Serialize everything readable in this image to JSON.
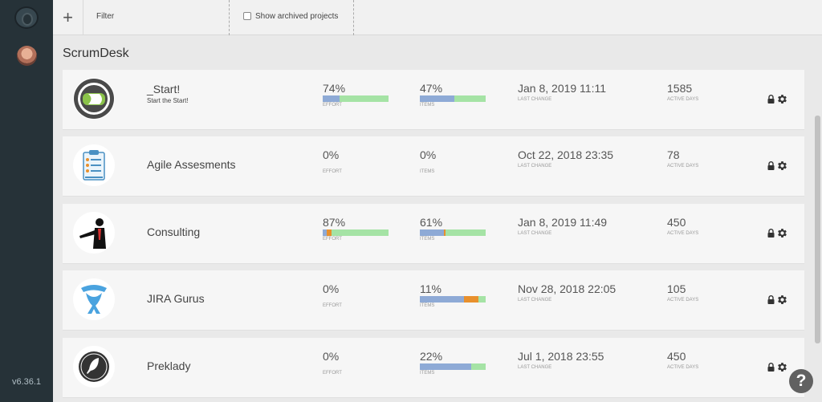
{
  "sidebar": {
    "version": "v6.36.1"
  },
  "toolbar": {
    "add_label": "+",
    "filter_placeholder": "Filter",
    "archived_label": "Show archived projects"
  },
  "section_title": "ScrumDesk",
  "projects": [
    {
      "name": "_Start!",
      "subtitle": "Start the Start!",
      "effort_pct": "74%",
      "effort_label": "EFFORT",
      "items_pct": "47%",
      "items_label": "ITEMS",
      "last_change": "Jan 8, 2019 11:11",
      "last_change_label": "LAST CHANGE",
      "active_days": "1585",
      "active_days_label": "ACTIVE DAYS",
      "effort_bar": {
        "blue": 0.26,
        "orange": 0.0,
        "green": 0.74
      },
      "items_bar": {
        "blue": 0.53,
        "orange": 0.0,
        "green": 0.47
      },
      "logo_icon": "scrumdesk-logo-icon"
    },
    {
      "name": "Agile Assesments",
      "subtitle": "",
      "effort_pct": "0%",
      "effort_label": "EFFORT",
      "items_pct": "0%",
      "items_label": "ITEMS",
      "last_change": "Oct 22, 2018 23:35",
      "last_change_label": "LAST CHANGE",
      "active_days": "78",
      "active_days_label": "ACTIVE DAYS",
      "effort_bar": null,
      "items_bar": null,
      "logo_icon": "clipboard-checklist-icon"
    },
    {
      "name": "Consulting",
      "subtitle": "",
      "effort_pct": "87%",
      "effort_label": "EFFORT",
      "items_pct": "61%",
      "items_label": "ITEMS",
      "last_change": "Jan 8, 2019 11:49",
      "last_change_label": "LAST CHANGE",
      "active_days": "450",
      "active_days_label": "ACTIVE DAYS",
      "effort_bar": {
        "blue": 0.06,
        "orange": 0.07,
        "green": 0.87
      },
      "items_bar": {
        "blue": 0.37,
        "orange": 0.02,
        "green": 0.61
      },
      "logo_icon": "presenter-figure-icon"
    },
    {
      "name": "JIRA Gurus",
      "subtitle": "",
      "effort_pct": "0%",
      "effort_label": "EFFORT",
      "items_pct": "11%",
      "items_label": "ITEMS",
      "last_change": "Nov 28, 2018 22:05",
      "last_change_label": "LAST CHANGE",
      "active_days": "105",
      "active_days_label": "ACTIVE DAYS",
      "effort_bar": null,
      "items_bar": {
        "blue": 0.67,
        "orange": 0.22,
        "green": 0.11
      },
      "logo_icon": "atlassian-logo-icon"
    },
    {
      "name": "Preklady",
      "subtitle": "",
      "effort_pct": "0%",
      "effort_label": "EFFORT",
      "items_pct": "22%",
      "items_label": "ITEMS",
      "last_change": "Jul 1, 2018 23:55",
      "last_change_label": "LAST CHANGE",
      "active_days": "450",
      "active_days_label": "ACTIVE DAYS",
      "effort_bar": null,
      "items_bar": {
        "blue": 0.78,
        "orange": 0.0,
        "green": 0.22
      },
      "logo_icon": "quill-feather-icon"
    }
  ],
  "colors": {
    "sidebar_bg": "#263238",
    "bar_blue": "#8eaad6",
    "bar_green": "#a5e3a5",
    "bar_orange": "#e8902d"
  },
  "help_label": "?"
}
